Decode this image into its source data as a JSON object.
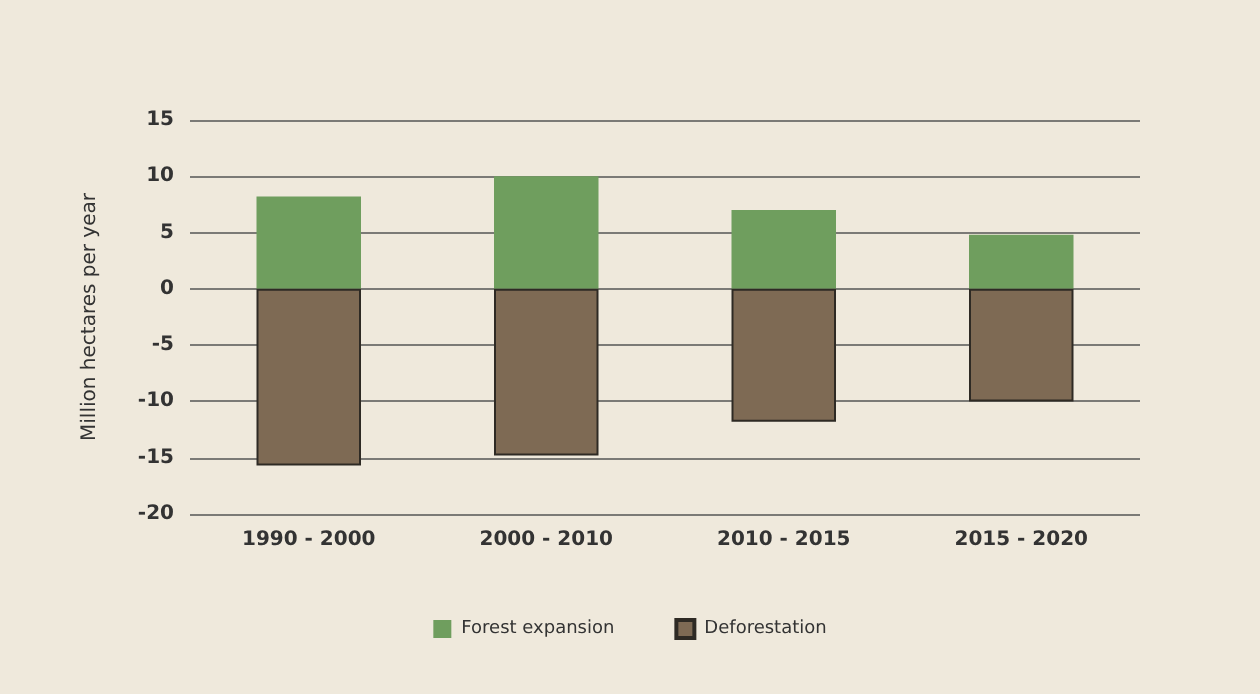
{
  "chart_data": {
    "type": "bar",
    "ylabel": "Million hectares per year",
    "categories": [
      "1990 - 2000",
      "2000 - 2010",
      "2010 - 2015",
      "2015 - 2020"
    ],
    "series": [
      {
        "name": "Forest expansion",
        "color": "#6f9e5e",
        "values": [
          8.2,
          10,
          7,
          4.8
        ]
      },
      {
        "name": "Deforestation",
        "color": "#7e6a54",
        "values": [
          -15.7,
          -14.8,
          -11.8,
          -10
        ]
      }
    ],
    "stacked": true,
    "ylim": [
      -20,
      15
    ],
    "yticks": [
      -20,
      -15,
      -10,
      -5,
      0,
      5,
      10,
      15
    ],
    "grid": "y",
    "legend": "bottom"
  }
}
